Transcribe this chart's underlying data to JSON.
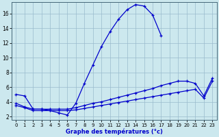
{
  "xlabel": "Graphe des températures (°c)",
  "bg_color": "#cce8ee",
  "line_color": "#0000cc",
  "grid_color": "#99bbcc",
  "ylim": [
    1.5,
    17.5
  ],
  "xlim": [
    -0.5,
    23.5
  ],
  "yticks": [
    2,
    4,
    6,
    8,
    10,
    12,
    14,
    16
  ],
  "xticks": [
    0,
    1,
    2,
    3,
    4,
    5,
    6,
    7,
    8,
    9,
    10,
    11,
    12,
    13,
    14,
    15,
    16,
    17,
    18,
    19,
    20,
    21,
    22,
    23
  ],
  "curve_main_x": [
    0,
    1,
    2,
    3,
    4,
    5,
    6,
    7,
    8,
    9,
    10,
    11,
    12,
    13,
    14,
    15,
    16,
    17
  ],
  "curve_main_y": [
    5.0,
    4.8,
    3.0,
    3.0,
    2.8,
    2.5,
    2.2,
    3.8,
    6.5,
    9.0,
    11.5,
    13.5,
    15.2,
    16.5,
    17.2,
    17.0,
    15.8,
    13.0
  ],
  "curve_hi_x": [
    0,
    1,
    2,
    3,
    4,
    5,
    6,
    7,
    8,
    9,
    10,
    11,
    12,
    13,
    14,
    15,
    16,
    17,
    18,
    19,
    20,
    21,
    22,
    23
  ],
  "curve_hi_y": [
    3.8,
    3.3,
    3.0,
    3.0,
    3.0,
    3.0,
    3.0,
    3.2,
    3.5,
    3.8,
    4.0,
    4.3,
    4.6,
    4.9,
    5.2,
    5.5,
    5.8,
    6.2,
    6.5,
    6.8,
    6.8,
    6.5,
    4.8,
    7.2
  ],
  "curve_lo_x": [
    0,
    1,
    2,
    3,
    4,
    5,
    6,
    7,
    8,
    9,
    10,
    11,
    12,
    13,
    14,
    15,
    16,
    17,
    18,
    19,
    20,
    21,
    22,
    23
  ],
  "curve_lo_y": [
    3.5,
    3.2,
    2.8,
    2.8,
    2.8,
    2.8,
    2.8,
    2.9,
    3.1,
    3.3,
    3.5,
    3.7,
    3.9,
    4.1,
    4.3,
    4.5,
    4.7,
    4.9,
    5.1,
    5.3,
    5.5,
    5.7,
    4.5,
    6.8
  ]
}
